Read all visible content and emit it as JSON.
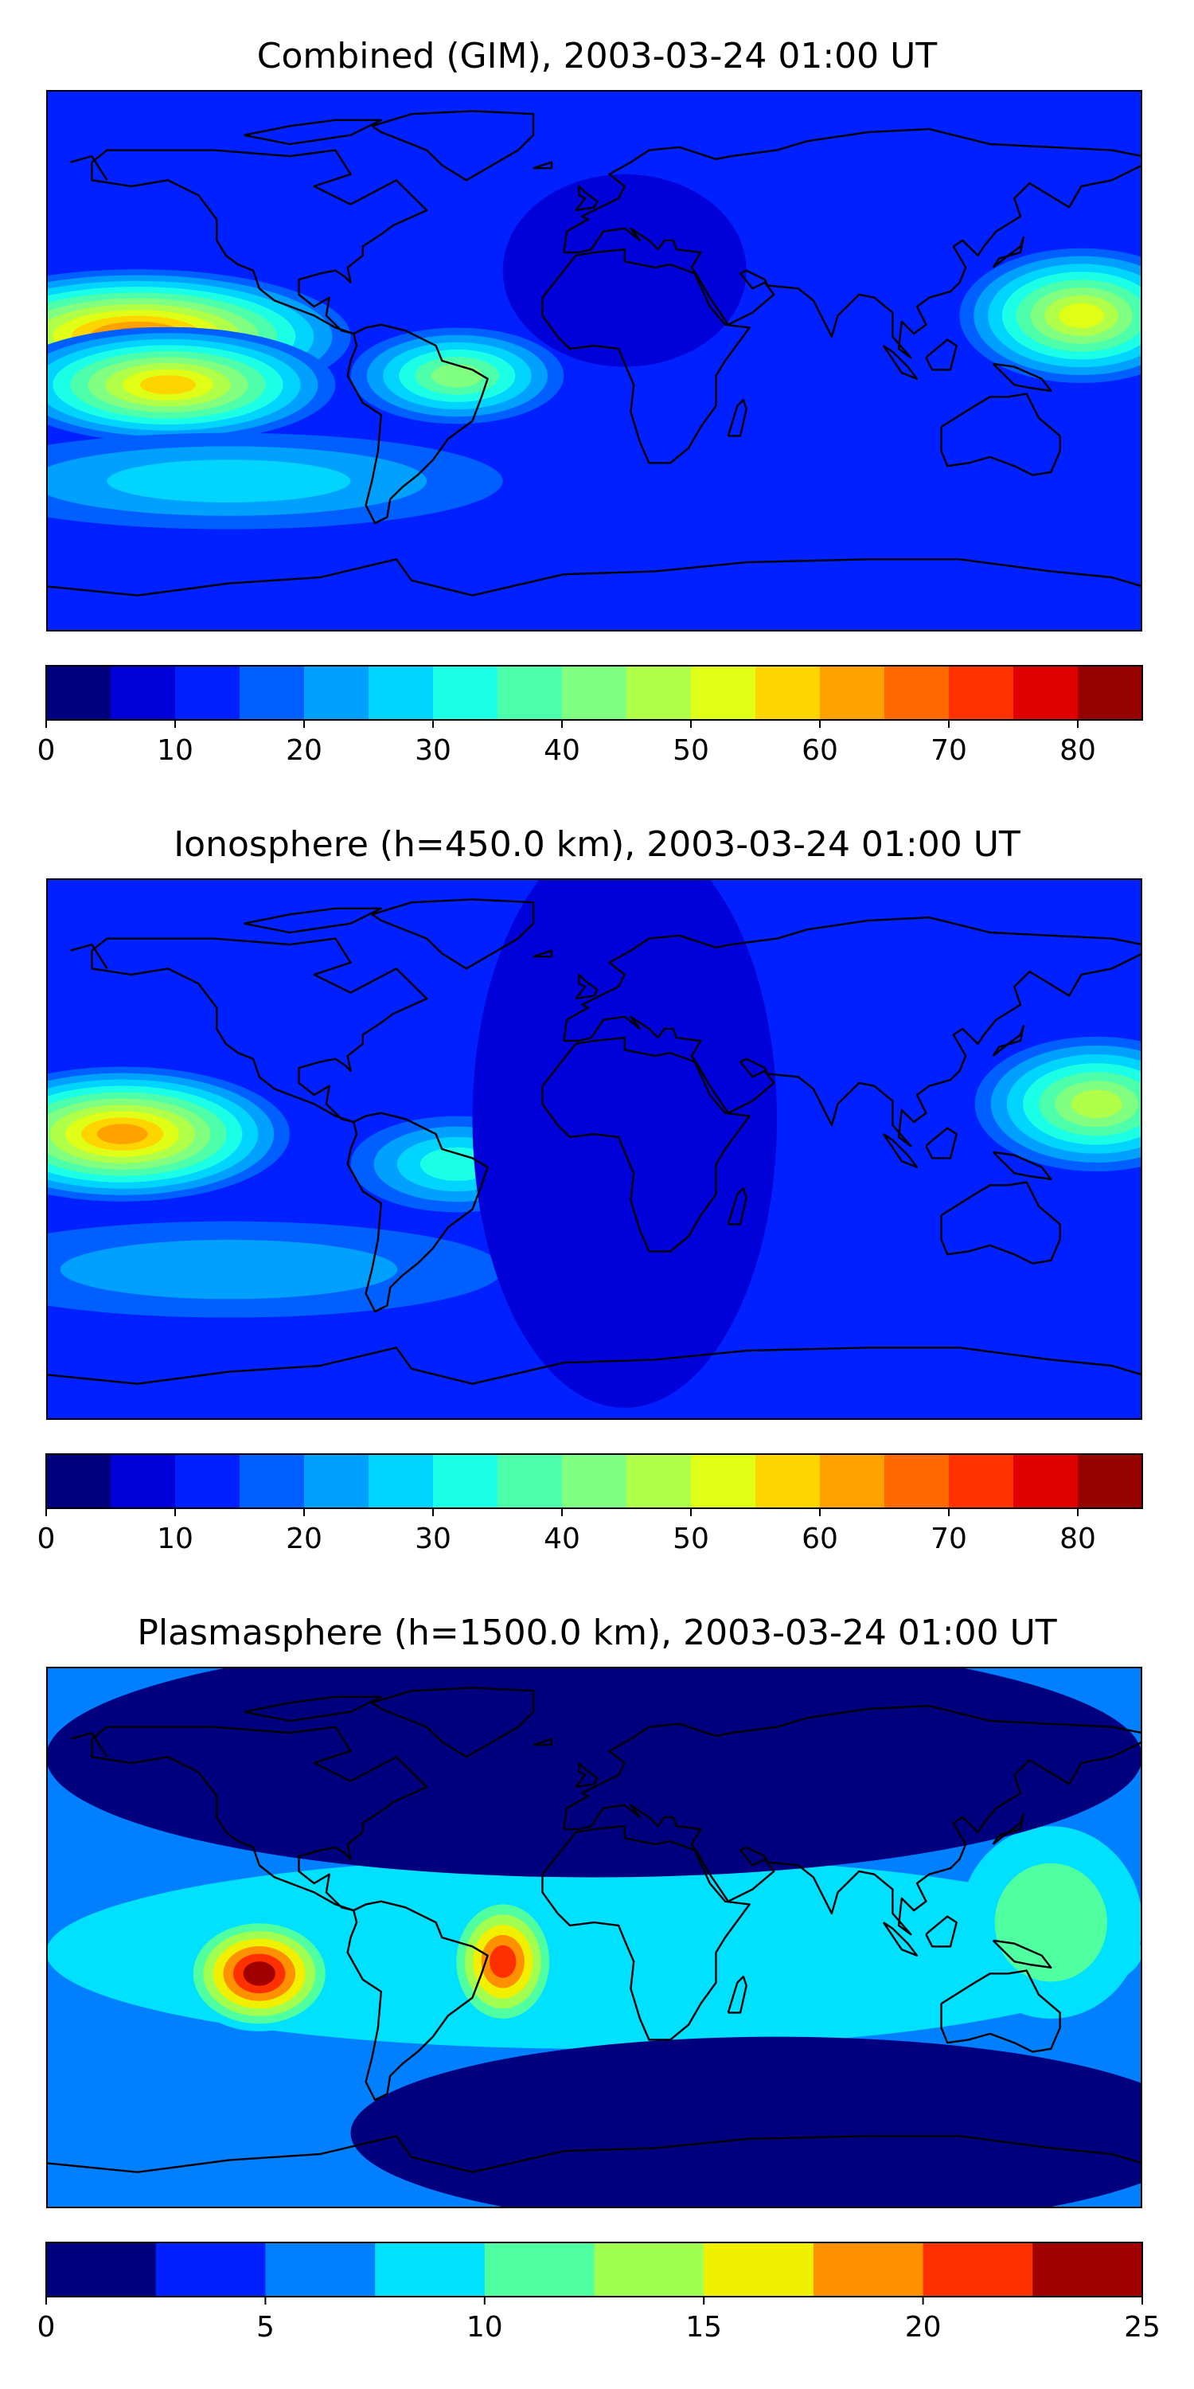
{
  "panels": [
    {
      "title": "Combined (GIM), 2003-03-24 01:00 UT",
      "colorbar": {
        "min": 0,
        "max": 85,
        "step": 5,
        "ticks": [
          0,
          10,
          20,
          30,
          40,
          50,
          60,
          70,
          80
        ],
        "tick_labels": [
          "0",
          "10",
          "20",
          "30",
          "40",
          "50",
          "60",
          "70",
          "80"
        ],
        "colors": [
          "#00007f",
          "#0000d9",
          "#0020ff",
          "#0060ff",
          "#00a0ff",
          "#00d4ff",
          "#1affe6",
          "#4dffaa",
          "#80ff80",
          "#b0ff49",
          "#e0ff16",
          "#ffd500",
          "#ffa200",
          "#ff6a00",
          "#ff3200",
          "#e00000",
          "#950000"
        ]
      },
      "map_field": {
        "background_level": 2,
        "features": [
          {
            "name": "pacific-equatorial-crest",
            "lon": -150,
            "lat": 8,
            "w": 70,
            "h": 14,
            "level": 13
          },
          {
            "name": "pacific-south-crest",
            "lon": -140,
            "lat": -8,
            "w": 55,
            "h": 12,
            "level": 11
          },
          {
            "name": "south-america-crest",
            "lon": -45,
            "lat": -5,
            "w": 35,
            "h": 10,
            "level": 8
          },
          {
            "name": "asia-pacific-crest",
            "lon": 160,
            "lat": 15,
            "w": 40,
            "h": 14,
            "level": 10
          },
          {
            "name": "southern-pacific-band",
            "lon": -120,
            "lat": -40,
            "w": 90,
            "h": 10,
            "level": 5
          },
          {
            "name": "atlantic-low",
            "lon": 10,
            "lat": 30,
            "w": 40,
            "h": 20,
            "level": 1
          }
        ]
      }
    },
    {
      "title": "Ionosphere  (h=450.0 km), 2003-03-24 01:00 UT",
      "colorbar": {
        "min": 0,
        "max": 85,
        "step": 5,
        "ticks": [
          0,
          10,
          20,
          30,
          40,
          50,
          60,
          70,
          80
        ],
        "tick_labels": [
          "0",
          "10",
          "20",
          "30",
          "40",
          "50",
          "60",
          "70",
          "80"
        ],
        "colors": [
          "#00007f",
          "#0000d9",
          "#0020ff",
          "#0060ff",
          "#00a0ff",
          "#00d4ff",
          "#1affe6",
          "#4dffaa",
          "#80ff80",
          "#b0ff49",
          "#e0ff16",
          "#ffd500",
          "#ffa200",
          "#ff6a00",
          "#ff3200",
          "#e00000",
          "#950000"
        ]
      },
      "map_field": {
        "background_level": 2,
        "features": [
          {
            "name": "pacific-equatorial-crest",
            "lon": -155,
            "lat": 5,
            "w": 55,
            "h": 14,
            "level": 12
          },
          {
            "name": "south-america-crest",
            "lon": -45,
            "lat": -5,
            "w": 35,
            "h": 10,
            "level": 6
          },
          {
            "name": "asia-pacific-crest",
            "lon": 165,
            "lat": 15,
            "w": 40,
            "h": 14,
            "level": 9
          },
          {
            "name": "southern-pacific-band",
            "lon": -120,
            "lat": -40,
            "w": 90,
            "h": 10,
            "level": 4
          },
          {
            "name": "atlantic-africa-low",
            "lon": 10,
            "lat": 10,
            "w": 50,
            "h": 60,
            "level": 1
          }
        ]
      }
    },
    {
      "title": "Plasmasphere (h=1500.0 km), 2003-03-24 01:00 UT",
      "colorbar": {
        "min": 0,
        "max": 25,
        "step": 2.5,
        "ticks": [
          0,
          5,
          10,
          15,
          20,
          25
        ],
        "tick_labels": [
          "0",
          "5",
          "10",
          "15",
          "20",
          "25"
        ],
        "colors": [
          "#00007f",
          "#0020ff",
          "#0080ff",
          "#00e0ff",
          "#50ffa0",
          "#a0ff50",
          "#f0f000",
          "#ff9000",
          "#ff3000",
          "#a00000"
        ]
      },
      "map_field": {
        "background_level": 2,
        "features": [
          {
            "name": "equatorial-band",
            "lon": 0,
            "lat": -5,
            "w": 180,
            "h": 20,
            "level": 3
          },
          {
            "name": "east-pacific-peak",
            "lon": -110,
            "lat": -12,
            "w": 25,
            "h": 12,
            "level": 9
          },
          {
            "name": "south-atlantic-peak",
            "lon": -30,
            "lat": -8,
            "w": 18,
            "h": 14,
            "level": 8
          },
          {
            "name": "asia-pacific-bulge",
            "lon": 150,
            "lat": 5,
            "w": 30,
            "h": 20,
            "level": 4
          },
          {
            "name": "north-polar-cap",
            "lon": 0,
            "lat": 60,
            "w": 180,
            "h": 25,
            "level": 0
          },
          {
            "name": "south-polar-cap",
            "lon": 60,
            "lat": -65,
            "w": 140,
            "h": 20,
            "level": 0
          }
        ]
      }
    }
  ]
}
